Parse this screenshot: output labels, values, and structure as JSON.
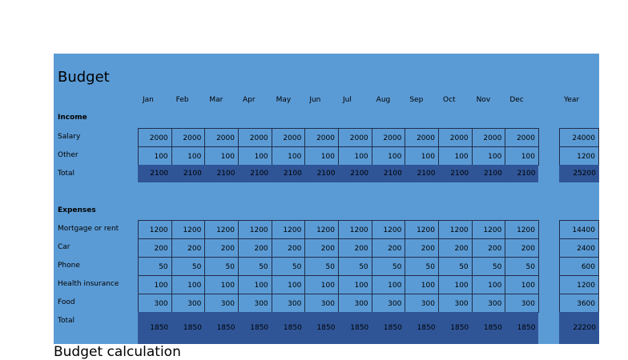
{
  "title": "Budget",
  "months": [
    "Jan",
    "Feb",
    "Mar",
    "Apr",
    "May",
    "Jun",
    "Jul",
    "Aug",
    "Sep",
    "Oct",
    "Nov",
    "Dec"
  ],
  "year_label": "Year",
  "sections": [
    {
      "label": "Income",
      "rows": [
        {
          "label": "Salary",
          "values": [
            2000,
            2000,
            2000,
            2000,
            2000,
            2000,
            2000,
            2000,
            2000,
            2000,
            2000,
            2000
          ],
          "year": 24000
        },
        {
          "label": "Other",
          "values": [
            100,
            100,
            100,
            100,
            100,
            100,
            100,
            100,
            100,
            100,
            100,
            100
          ],
          "year": 1200
        }
      ],
      "total": {
        "label": "Total",
        "values": [
          2100,
          2100,
          2100,
          2100,
          2100,
          2100,
          2100,
          2100,
          2100,
          2100,
          2100,
          2100
        ],
        "year": 25200
      }
    },
    {
      "label": "Expenses",
      "rows": [
        {
          "label": "Mortgage or rent",
          "values": [
            1200,
            1200,
            1200,
            1200,
            1200,
            1200,
            1200,
            1200,
            1200,
            1200,
            1200,
            1200
          ],
          "year": 14400
        },
        {
          "label": "Car",
          "values": [
            200,
            200,
            200,
            200,
            200,
            200,
            200,
            200,
            200,
            200,
            200,
            200
          ],
          "year": 2400
        },
        {
          "label": "Phone",
          "values": [
            50,
            50,
            50,
            50,
            50,
            50,
            50,
            50,
            50,
            50,
            50,
            50
          ],
          "year": 600
        },
        {
          "label": "Health insurance",
          "values": [
            100,
            100,
            100,
            100,
            100,
            100,
            100,
            100,
            100,
            100,
            100,
            100
          ],
          "year": 1200
        },
        {
          "label": "Food",
          "values": [
            300,
            300,
            300,
            300,
            300,
            300,
            300,
            300,
            300,
            300,
            300,
            300
          ],
          "year": 3600
        }
      ],
      "total": {
        "label": "Total",
        "values": [
          1850,
          1850,
          1850,
          1850,
          1850,
          1850,
          1850,
          1850,
          1850,
          1850,
          1850,
          1850
        ],
        "year": 22200
      }
    }
  ],
  "footer": "Budget calculation"
}
